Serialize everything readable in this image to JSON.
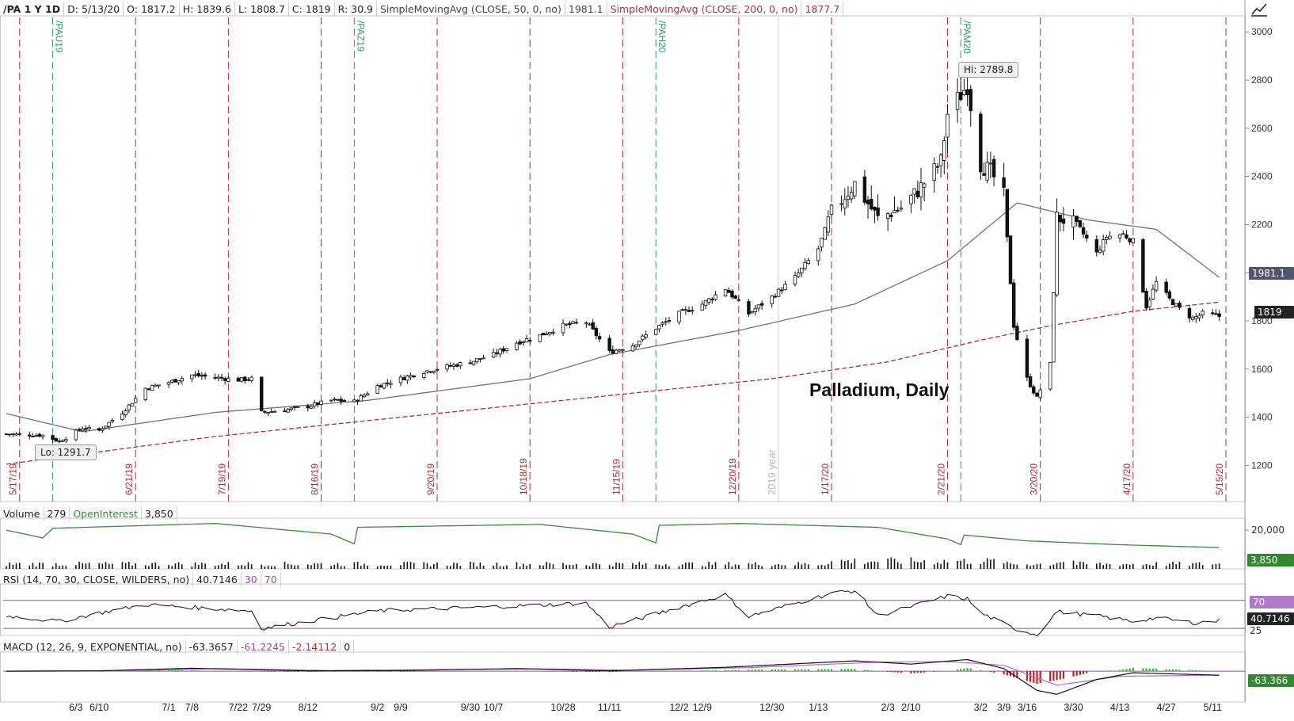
{
  "header": {
    "symbol": "/PA 1 Y 1D",
    "date": "D: 5/13/20",
    "open": "O: 1817.2",
    "high": "H: 1839.6",
    "low": "L: 1808.7",
    "close": "C: 1819",
    "range": "R: 30.9",
    "sma50_label": "SimpleMovingAvg (CLOSE, 50, 0, no)",
    "sma50_value": "1981.1",
    "sma200_label": "SimpleMovingAvg (CLOSE, 200, 0, no)",
    "sma200_value": "1877.7"
  },
  "volume_header": {
    "label": "Volume",
    "value": "279",
    "oi_label": "OpenInterest",
    "oi_value": "3,850"
  },
  "rsi_header": {
    "label": "RSI (14, 70, 30, CLOSE, WILDERS, no)",
    "value": "40.7146",
    "low": "30",
    "high": "70"
  },
  "macd_header": {
    "label": "MACD (12, 26, 9, EXPONENTIAL, no)",
    "value": "-63.3657",
    "avg": "-61.2245",
    "diff": "-2.14112",
    "zero": "0"
  },
  "tags": {
    "sma50": "1981.1",
    "last": "1819",
    "oi": "3,850",
    "rsi_70": "70",
    "rsi_value": "40.7146",
    "rsi_25": "25",
    "macd_value": "-63.366",
    "vol_axis": "20,000"
  },
  "annotations": {
    "title": "Palladium, Daily",
    "hi": "Hi: 2789.8",
    "lo": "Lo: 1291.7",
    "year": "2019 year"
  },
  "colors": {
    "up": "#ffffff",
    "down": "#111111",
    "sma50": "#6e7088",
    "sma200": "#b02a3a",
    "expiry_line": "#b02a3a",
    "rollover_line": "#2f9a72",
    "volume_bar": "#111111",
    "open_interest": "#3a8a3a",
    "rsi": "#111111",
    "rsi_overbought": "#c07ab8",
    "macd": "#111111",
    "macd_avg": "#b06ad0",
    "hist_up": "#2fb82f",
    "hist_down": "#c02020"
  },
  "chart_data": {
    "type": "candlestick",
    "title": "Palladium, Daily",
    "y_ticks": [
      1200,
      1400,
      1600,
      1800,
      2000,
      2200,
      2400,
      2600,
      2800,
      3000
    ],
    "ylim": [
      1050,
      3060
    ],
    "x_ticks": [
      "6/3",
      "6/10",
      "7/1",
      "7/8",
      "7/22",
      "7/29",
      "8/12",
      "9/2",
      "9/9",
      "9/30",
      "10/7",
      "10/28",
      "11/11",
      "12/2",
      "12/9",
      "12/30",
      "1/13",
      "2/3",
      "2/10",
      "3/2",
      "3/9",
      "3/16",
      "3/30",
      "4/13",
      "4/27",
      "5/11"
    ],
    "x_tick_dates": [
      "2019-06-03",
      "2019-06-10",
      "2019-07-01",
      "2019-07-08",
      "2019-07-22",
      "2019-07-29",
      "2019-08-12",
      "2019-09-02",
      "2019-09-09",
      "2019-09-30",
      "2019-10-07",
      "2019-10-28",
      "2019-11-11",
      "2019-12-02",
      "2019-12-09",
      "2019-12-30",
      "2020-01-13",
      "2020-02-03",
      "2020-02-10",
      "2020-03-02",
      "2020-03-09",
      "2020-03-16",
      "2020-03-30",
      "2020-04-13",
      "2020-04-27",
      "2020-05-11"
    ],
    "date_range": [
      "2019-05-13",
      "2020-05-15"
    ],
    "expiry_lines": [
      {
        "date": "2019-05-17",
        "label": "5/17/19"
      },
      {
        "date": "2019-06-21",
        "label": "6/21/19"
      },
      {
        "date": "2019-07-19",
        "label": "7/19/19"
      },
      {
        "date": "2019-08-16",
        "label": "8/16/19"
      },
      {
        "date": "2019-09-20",
        "label": "9/20/19"
      },
      {
        "date": "2019-10-18",
        "label": "10/18/19"
      },
      {
        "date": "2019-11-15",
        "label": "11/15/19"
      },
      {
        "date": "2019-12-20",
        "label": "12/20/19"
      },
      {
        "date": "2020-01-17",
        "label": "1/17/20"
      },
      {
        "date": "2020-02-21",
        "label": "2/21/20"
      },
      {
        "date": "2020-03-20",
        "label": "3/20/20"
      },
      {
        "date": "2020-04-17",
        "label": "4/17/20"
      },
      {
        "date": "2020-05-15",
        "label": "5/15/20"
      }
    ],
    "rollover_lines": [
      {
        "date": "2019-05-27",
        "label": "/PAU19"
      },
      {
        "date": "2019-08-26",
        "label": "/PAZ19"
      },
      {
        "date": "2019-11-25",
        "label": "/PAH20"
      },
      {
        "date": "2020-02-25",
        "label": "/PAM20"
      }
    ],
    "close_anchors": [
      [
        "2019-05-13",
        1330
      ],
      [
        "2019-05-24",
        1325
      ],
      [
        "2019-05-29",
        1300
      ],
      [
        "2019-06-05",
        1355
      ],
      [
        "2019-06-10",
        1345
      ],
      [
        "2019-06-17",
        1420
      ],
      [
        "2019-06-24",
        1520
      ],
      [
        "2019-07-01",
        1545
      ],
      [
        "2019-07-08",
        1575
      ],
      [
        "2019-07-15",
        1565
      ],
      [
        "2019-07-22",
        1555
      ],
      [
        "2019-07-26",
        1560
      ],
      [
        "2019-07-29",
        1420
      ],
      [
        "2019-08-05",
        1430
      ],
      [
        "2019-08-12",
        1445
      ],
      [
        "2019-08-19",
        1470
      ],
      [
        "2019-08-26",
        1465
      ],
      [
        "2019-09-02",
        1530
      ],
      [
        "2019-09-09",
        1560
      ],
      [
        "2019-09-16",
        1590
      ],
      [
        "2019-09-23",
        1610
      ],
      [
        "2019-09-30",
        1630
      ],
      [
        "2019-10-07",
        1660
      ],
      [
        "2019-10-14",
        1710
      ],
      [
        "2019-10-21",
        1740
      ],
      [
        "2019-10-28",
        1780
      ],
      [
        "2019-11-04",
        1795
      ],
      [
        "2019-11-11",
        1670
      ],
      [
        "2019-11-18",
        1700
      ],
      [
        "2019-11-25",
        1770
      ],
      [
        "2019-12-02",
        1830
      ],
      [
        "2019-12-09",
        1870
      ],
      [
        "2019-12-16",
        1935
      ],
      [
        "2019-12-23",
        1830
      ],
      [
        "2019-12-30",
        1900
      ],
      [
        "2020-01-06",
        1980
      ],
      [
        "2020-01-13",
        2100
      ],
      [
        "2020-01-17",
        2250
      ],
      [
        "2020-01-24",
        2370
      ],
      [
        "2020-01-31",
        2225
      ],
      [
        "2020-02-07",
        2270
      ],
      [
        "2020-02-12",
        2340
      ],
      [
        "2020-02-19",
        2460
      ],
      [
        "2020-02-21",
        2660
      ],
      [
        "2020-02-27",
        2780
      ],
      [
        "2020-03-02",
        2450
      ],
      [
        "2020-03-05",
        2420
      ],
      [
        "2020-03-09",
        2320
      ],
      [
        "2020-03-12",
        1780
      ],
      [
        "2020-03-16",
        1560
      ],
      [
        "2020-03-19",
        1480
      ],
      [
        "2020-03-23",
        1620
      ],
      [
        "2020-03-25",
        2230
      ],
      [
        "2020-03-31",
        2200
      ],
      [
        "2020-04-06",
        2080
      ],
      [
        "2020-04-09",
        2150
      ],
      [
        "2020-04-14",
        2160
      ],
      [
        "2020-04-17",
        2130
      ],
      [
        "2020-04-21",
        1860
      ],
      [
        "2020-04-24",
        1960
      ],
      [
        "2020-04-28",
        1890
      ],
      [
        "2020-05-01",
        1850
      ],
      [
        "2020-05-05",
        1810
      ],
      [
        "2020-05-08",
        1830
      ],
      [
        "2020-05-13",
        1819
      ]
    ],
    "sma50_anchors": [
      [
        "2019-05-13",
        1415
      ],
      [
        "2019-06-05",
        1340
      ],
      [
        "2019-07-15",
        1420
      ],
      [
        "2019-08-30",
        1470
      ],
      [
        "2019-10-18",
        1560
      ],
      [
        "2019-11-11",
        1660
      ],
      [
        "2019-12-20",
        1760
      ],
      [
        "2020-01-24",
        1870
      ],
      [
        "2020-02-21",
        2050
      ],
      [
        "2020-03-13",
        2290
      ],
      [
        "2020-04-03",
        2220
      ],
      [
        "2020-04-24",
        2180
      ],
      [
        "2020-05-13",
        1981.1
      ]
    ],
    "sma200_anchors": [
      [
        "2019-05-13",
        1205
      ],
      [
        "2019-07-15",
        1320
      ],
      [
        "2019-09-16",
        1410
      ],
      [
        "2019-11-11",
        1490
      ],
      [
        "2019-12-30",
        1560
      ],
      [
        "2020-02-03",
        1630
      ],
      [
        "2020-03-02",
        1720
      ],
      [
        "2020-03-23",
        1780
      ],
      [
        "2020-04-17",
        1840
      ],
      [
        "2020-05-13",
        1877.7
      ]
    ],
    "high": 2789.8,
    "high_date": "2020-02-27",
    "low": 1291.7,
    "low_date": "2019-05-29",
    "volume": {
      "axis_label": "20,000",
      "ymax": 25000,
      "base_level": 2500,
      "open_interest_anchors": [
        [
          "2019-05-13",
          20000
        ],
        [
          "2019-05-24",
          16000
        ],
        [
          "2019-05-27",
          21000
        ],
        [
          "2019-07-15",
          23500
        ],
        [
          "2019-08-19",
          18000
        ],
        [
          "2019-08-26",
          13000
        ],
        [
          "2019-08-27",
          21500
        ],
        [
          "2019-10-21",
          23000
        ],
        [
          "2019-11-18",
          18000
        ],
        [
          "2019-11-25",
          13500
        ],
        [
          "2019-11-26",
          22500
        ],
        [
          "2019-12-20",
          23500
        ],
        [
          "2020-01-31",
          21500
        ],
        [
          "2020-02-21",
          15500
        ],
        [
          "2020-02-25",
          12500
        ],
        [
          "2020-02-26",
          17500
        ],
        [
          "2020-03-16",
          14500
        ],
        [
          "2020-04-13",
          12500
        ],
        [
          "2020-05-13",
          11000
        ]
      ]
    },
    "rsi": {
      "levels": [
        30,
        70
      ],
      "last": 40.7146,
      "anchors": [
        [
          "2019-05-13",
          48
        ],
        [
          "2019-05-29",
          40
        ],
        [
          "2019-06-10",
          52
        ],
        [
          "2019-06-24",
          64
        ],
        [
          "2019-07-08",
          60
        ],
        [
          "2019-07-26",
          55
        ],
        [
          "2019-07-29",
          30
        ],
        [
          "2019-08-19",
          45
        ],
        [
          "2019-09-02",
          55
        ],
        [
          "2019-10-14",
          62
        ],
        [
          "2019-11-04",
          66
        ],
        [
          "2019-11-11",
          32
        ],
        [
          "2019-12-02",
          60
        ],
        [
          "2019-12-16",
          78
        ],
        [
          "2019-12-23",
          47
        ],
        [
          "2020-01-17",
          80
        ],
        [
          "2020-01-24",
          84
        ],
        [
          "2020-01-31",
          48
        ],
        [
          "2020-02-21",
          76
        ],
        [
          "2020-02-27",
          72
        ],
        [
          "2020-03-02",
          52
        ],
        [
          "2020-03-12",
          30
        ],
        [
          "2020-03-19",
          21
        ],
        [
          "2020-03-25",
          54
        ],
        [
          "2020-04-06",
          48
        ],
        [
          "2020-04-17",
          40
        ],
        [
          "2020-04-24",
          45
        ],
        [
          "2020-05-05",
          38
        ],
        [
          "2020-05-13",
          40.7146
        ]
      ]
    },
    "macd": {
      "last": -63.3657,
      "avg": -61.2245,
      "diff": -2.14112,
      "ylim": [
        -480,
        260
      ],
      "macd_anchors": [
        [
          "2019-05-13",
          0
        ],
        [
          "2019-06-10",
          5
        ],
        [
          "2019-07-08",
          45
        ],
        [
          "2019-08-12",
          5
        ],
        [
          "2019-09-09",
          10
        ],
        [
          "2019-10-14",
          40
        ],
        [
          "2019-11-11",
          5
        ],
        [
          "2019-12-16",
          60
        ],
        [
          "2020-01-24",
          160
        ],
        [
          "2020-02-10",
          110
        ],
        [
          "2020-02-27",
          180
        ],
        [
          "2020-03-09",
          40
        ],
        [
          "2020-03-19",
          -300
        ],
        [
          "2020-03-25",
          -360
        ],
        [
          "2020-04-06",
          -130
        ],
        [
          "2020-04-17",
          -25
        ],
        [
          "2020-05-13",
          -63.3657
        ]
      ],
      "avg_anchors": [
        [
          "2019-05-13",
          0
        ],
        [
          "2019-06-17",
          4
        ],
        [
          "2019-07-15",
          40
        ],
        [
          "2019-08-19",
          10
        ],
        [
          "2019-10-21",
          35
        ],
        [
          "2019-11-18",
          15
        ],
        [
          "2019-12-23",
          55
        ],
        [
          "2020-01-31",
          140
        ],
        [
          "2020-02-21",
          150
        ],
        [
          "2020-03-09",
          90
        ],
        [
          "2020-03-25",
          -220
        ],
        [
          "2020-04-13",
          -80
        ],
        [
          "2020-05-13",
          -61.2245
        ]
      ]
    }
  }
}
